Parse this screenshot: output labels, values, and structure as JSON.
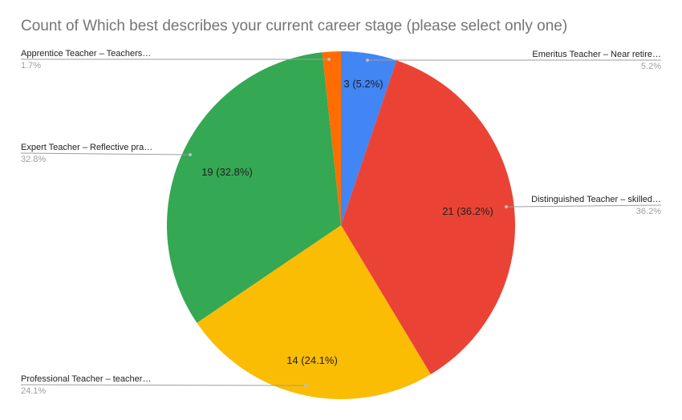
{
  "chart_data": {
    "type": "pie",
    "title": "Count of Which best describes your current career stage (please select only one)",
    "slices": [
      {
        "label": "Emeritus Teacher – Near retire…",
        "value": 3,
        "percent_label": "5.2%",
        "data_label": "3 (5.2%)",
        "color": "#4285f4"
      },
      {
        "label": "Distinguished Teacher – skilled…",
        "value": 21,
        "percent_label": "36.2%",
        "data_label": "21 (36.2%)",
        "color": "#ea4335"
      },
      {
        "label": "Professional Teacher – teacher…",
        "value": 14,
        "percent_label": "24.1%",
        "data_label": "14 (24.1%)",
        "color": "#fbbc04"
      },
      {
        "label": "Expert Teacher – Reflective pra…",
        "value": 19,
        "percent_label": "32.8%",
        "data_label": "19 (32.8%)",
        "color": "#34a853"
      },
      {
        "label": "Apprentice Teacher – Teachers…",
        "value": 1,
        "percent_label": "1.7%",
        "data_label": "",
        "color": "#ff6d01"
      }
    ]
  }
}
